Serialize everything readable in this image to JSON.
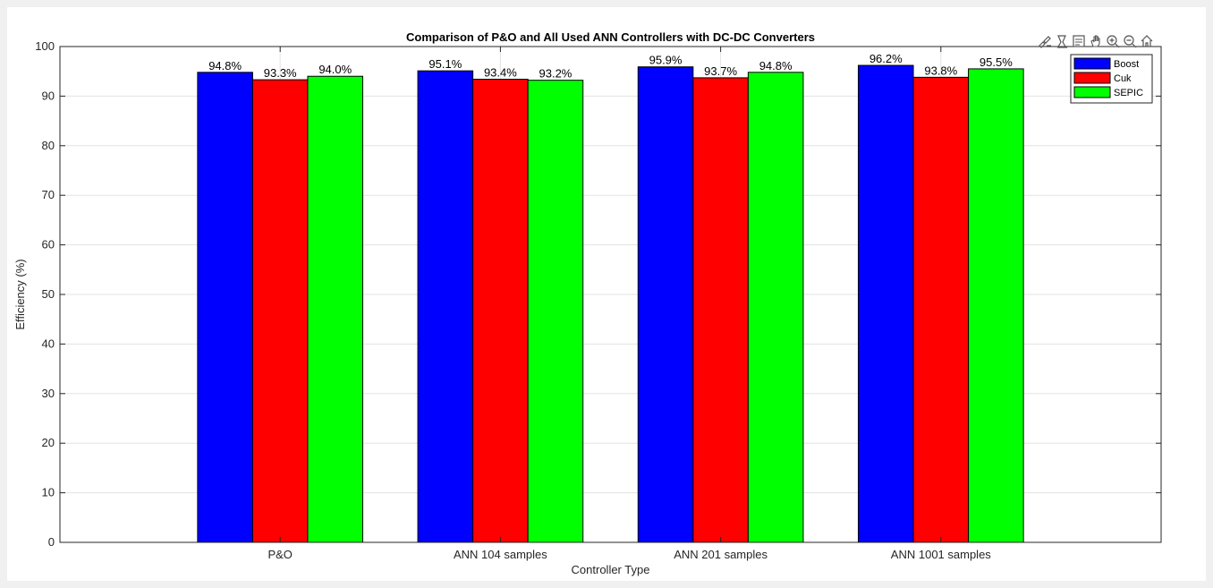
{
  "toolbar": {
    "icons": [
      "brush-icon",
      "datatip-icon",
      "legend-toggle-icon",
      "pan-icon",
      "zoom-in-icon",
      "zoom-out-icon",
      "home-icon"
    ]
  },
  "chart_data": {
    "type": "bar",
    "title": "Comparison of P&O and All Used ANN Controllers with DC-DC Converters",
    "xlabel": "Controller Type",
    "ylabel": "Efficiency (%)",
    "categories": [
      "P&O",
      "ANN 104 samples",
      "ANN 201 samples",
      "ANN 1001 samples"
    ],
    "series": [
      {
        "name": "Boost",
        "color": "#0000ff",
        "values": [
          94.8,
          95.1,
          95.9,
          96.2
        ],
        "labels": [
          "94.8%",
          "95.1%",
          "95.9%",
          "96.2%"
        ]
      },
      {
        "name": "Cuk",
        "color": "#ff0000",
        "values": [
          93.3,
          93.4,
          93.7,
          93.8
        ],
        "labels": [
          "93.3%",
          "93.4%",
          "93.7%",
          "93.8%"
        ]
      },
      {
        "name": "SEPIC",
        "color": "#00ff00",
        "values": [
          94.0,
          93.2,
          94.8,
          95.5
        ],
        "labels": [
          "94.0%",
          "93.2%",
          "94.8%",
          "95.5%"
        ]
      }
    ],
    "ylim": [
      0,
      100
    ],
    "yticks": [
      0,
      10,
      20,
      30,
      40,
      50,
      60,
      70,
      80,
      90,
      100
    ],
    "xlim": [
      0,
      5
    ],
    "grid": true,
    "legend_position": "top-right"
  }
}
